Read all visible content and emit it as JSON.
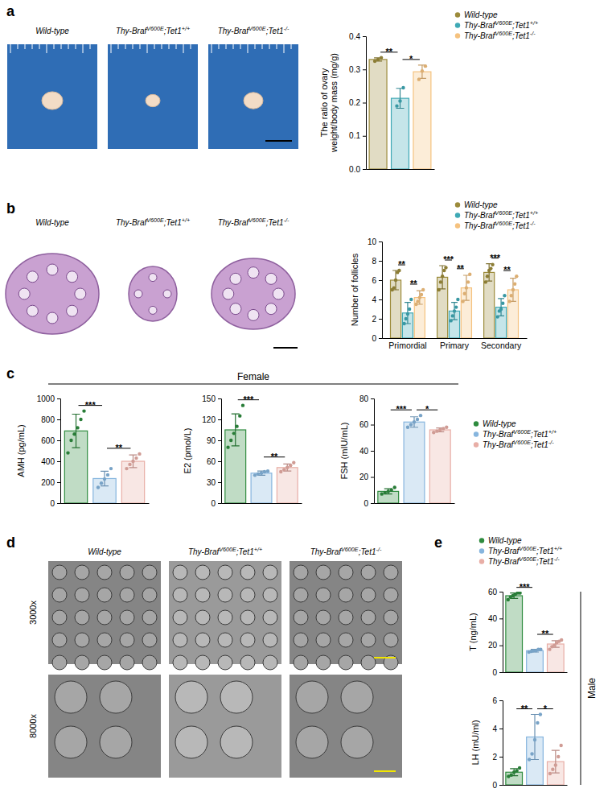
{
  "panels": [
    "a",
    "b",
    "c",
    "d",
    "e"
  ],
  "group_labels": [
    "Female",
    "Male"
  ],
  "images": [
    {
      "panel": "a",
      "labels": [
        "Wild-type",
        "Thy-BrafV600E;Tet1+/+",
        "Thy-BrafV600E;Tet1-/-"
      ]
    },
    {
      "panel": "b",
      "labels": [
        "Wild-type",
        "Thy-BrafV600E;Tet1+/+",
        "Thy-BrafV600E;Tet1-/-"
      ]
    },
    {
      "panel": "d",
      "labels": [
        "Wild-type",
        "Thy-BrafV600E;Tet1+/+",
        "Thy-BrafV600E;Tet1-/-"
      ],
      "rows": [
        "3000x",
        "8000x"
      ]
    }
  ],
  "chart_data": [
    {
      "type": "bar",
      "y_label": "The ratio of ovary weight/body mass (mg/g)",
      "categories": [
        "Wild-type",
        "Thy-BrafV600E;Tet1+/+",
        "Thy-BrafV600E;Tet1-/-"
      ],
      "values": [
        0.33,
        0.213,
        0.293
      ],
      "errors": [
        0.005,
        0.03,
        0.02
      ],
      "points": [
        [
          0.325,
          0.33,
          0.335
        ],
        [
          0.19,
          0.205,
          0.245
        ],
        [
          0.27,
          0.295,
          0.31
        ]
      ],
      "colors": [
        "#9c8b3b",
        "#3fa9b5",
        "#f5c27f"
      ],
      "ylim": [
        0,
        0.4
      ],
      "yticks": [
        {
          "value": 0,
          "label": "0.0"
        },
        {
          "value": 0.1,
          "label": "0.1"
        },
        {
          "value": 0.2,
          "label": "0.2"
        },
        {
          "value": 0.3,
          "label": "0.3"
        },
        {
          "value": 0.4,
          "label": "0.4"
        }
      ],
      "tick_labels": "y",
      "legend": "top-right",
      "annotations": [
        {
          "text": "**",
          "between": [
            0,
            1
          ]
        },
        {
          "text": "*",
          "between": [
            1,
            2
          ]
        }
      ]
    },
    {
      "type": "bar",
      "y_label": "Number of follicles",
      "categories": [
        "Primordial",
        "Primary",
        "Secondary"
      ],
      "series": [
        {
          "name": "Wild-type",
          "color": "#9c8b3b",
          "values": [
            6.0,
            6.3,
            6.8
          ],
          "errors": [
            1.0,
            1.2,
            0.9
          ],
          "points": [
            [
              5,
              5.2,
              6,
              6.8,
              7
            ],
            [
              5,
              5.8,
              6.4,
              7,
              7.3
            ],
            [
              5.8,
              6.4,
              7,
              7.2,
              7.6
            ]
          ]
        },
        {
          "name": "Thy-BrafV600E;Tet1+/+",
          "color": "#3fa9b5",
          "values": [
            2.6,
            2.8,
            3.2
          ],
          "errors": [
            1.1,
            0.9,
            0.9
          ],
          "points": [
            [
              1.5,
              2,
              2.5,
              3,
              4
            ],
            [
              1.8,
              2.3,
              2.8,
              3.2,
              4
            ],
            [
              2.2,
              2.8,
              3,
              3.6,
              4.4
            ]
          ]
        },
        {
          "name": "Thy-BrafV600E;Tet1-/-",
          "color": "#f5c27f",
          "values": [
            4.2,
            5.2,
            5.0
          ],
          "errors": [
            0.7,
            1.3,
            1.2
          ],
          "points": [
            [
              3.5,
              3.8,
              4.2,
              4.5,
              5
            ],
            [
              3.8,
              4.6,
              5.2,
              5.8,
              6.6
            ],
            [
              3.8,
              4.4,
              5,
              5.6,
              6.4
            ]
          ]
        }
      ],
      "ylim": [
        0,
        10
      ],
      "yticks": [
        0,
        2,
        4,
        6,
        8,
        10
      ],
      "legend": "top-right",
      "annotations": [
        {
          "text": "**",
          "category": 0,
          "between": [
            0,
            1
          ]
        },
        {
          "text": "**",
          "category": 0,
          "between": [
            1,
            2
          ]
        },
        {
          "text": "***",
          "category": 1,
          "between": [
            0,
            1
          ]
        },
        {
          "text": "**",
          "category": 1,
          "between": [
            1,
            2
          ]
        },
        {
          "text": "***",
          "category": 2,
          "between": [
            0,
            1
          ]
        },
        {
          "text": "**",
          "category": 2,
          "between": [
            1,
            2
          ]
        }
      ]
    },
    {
      "type": "bar",
      "y_label": "AMH (pg/mL)",
      "categories": [
        null,
        null,
        null
      ],
      "values": [
        690,
        235,
        400
      ],
      "errors": [
        160,
        70,
        60
      ],
      "points": [
        [
          480,
          600,
          660,
          720,
          800,
          880
        ],
        [
          150,
          190,
          230,
          270,
          330
        ],
        [
          330,
          370,
          400,
          430,
          470
        ]
      ],
      "colors": [
        "#2e8b3e",
        "#86b5de",
        "#e8aea6"
      ],
      "ylim": [
        0,
        1000
      ],
      "yticks": [
        0,
        200,
        400,
        600,
        800,
        1000
      ],
      "tick_labels": "y",
      "annotations": [
        {
          "text": "***",
          "between": [
            0,
            1
          ]
        },
        {
          "text": "**",
          "between": [
            1,
            2
          ]
        }
      ]
    },
    {
      "type": "bar",
      "y_label": "E2 (pmol/L)",
      "categories": [
        null,
        null,
        null
      ],
      "values": [
        105,
        43,
        51
      ],
      "errors": [
        23,
        3,
        5
      ],
      "points": [
        [
          80,
          90,
          100,
          110,
          125,
          140
        ],
        [
          40,
          42,
          43,
          45,
          46
        ],
        [
          45,
          48,
          51,
          54,
          58
        ]
      ],
      "colors": [
        "#2e8b3e",
        "#86b5de",
        "#e8aea6"
      ],
      "ylim": [
        0,
        150
      ],
      "yticks": [
        0,
        30,
        60,
        90,
        120,
        150
      ],
      "tick_labels": "y",
      "annotations": [
        {
          "text": "***",
          "between": [
            0,
            1
          ]
        },
        {
          "text": "**",
          "between": [
            1,
            2
          ]
        }
      ]
    },
    {
      "type": "bar",
      "y_label": "FSH (mIU/mL)",
      "categories": [
        "Wild-type",
        "Thy-BrafV600E;Tet1+/+",
        "Thy-BrafV600E;Tet1-/-"
      ],
      "values": [
        9,
        62,
        56
      ],
      "errors": [
        2,
        4,
        1.5
      ],
      "points": [
        [
          7,
          8,
          9,
          10,
          12
        ],
        [
          58,
          60,
          62,
          64,
          67
        ],
        [
          54,
          55,
          56,
          57,
          58
        ]
      ],
      "colors": [
        "#2e8b3e",
        "#86b5de",
        "#e8aea6"
      ],
      "ylim": [
        0,
        80
      ],
      "yticks": [
        0,
        20,
        40,
        60,
        80
      ],
      "tick_labels": "y",
      "legend": "right",
      "annotations": [
        {
          "text": "***",
          "between": [
            0,
            1
          ]
        },
        {
          "text": "*",
          "between": [
            1,
            2
          ]
        }
      ]
    },
    {
      "type": "bar",
      "y_label": "T (ng/mL)",
      "categories": [
        "Wild-type",
        "Thy-BrafV600E;Tet1+/+",
        "Thy-BrafV600E;Tet1-/-"
      ],
      "values": [
        57,
        16,
        21
      ],
      "errors": [
        2,
        1,
        2.5
      ],
      "points": [
        [
          54,
          56,
          57,
          58,
          59,
          59
        ],
        [
          15,
          15.5,
          16,
          16,
          17,
          17
        ],
        [
          17,
          19,
          20,
          22,
          23,
          24
        ]
      ],
      "colors": [
        "#2e8b3e",
        "#86b5de",
        "#e8aea6"
      ],
      "ylim": [
        0,
        60
      ],
      "yticks": [
        0,
        20,
        40,
        60
      ],
      "tick_labels": "y",
      "legend": "top",
      "annotations": [
        {
          "text": "***",
          "between": [
            0,
            1
          ]
        },
        {
          "text": "**",
          "between": [
            1,
            2
          ]
        }
      ]
    },
    {
      "type": "bar",
      "y_label": "LH (mU/ml)",
      "categories": [
        null,
        null,
        null
      ],
      "values": [
        0.9,
        3.4,
        1.65
      ],
      "errors": [
        0.25,
        1.6,
        0.8
      ],
      "points": [
        [
          0.6,
          0.7,
          0.9,
          1.0,
          1.2
        ],
        [
          1.8,
          2.2,
          3.2,
          4.4,
          5.0
        ],
        [
          0.8,
          1.1,
          1.4,
          2.0,
          2.8
        ]
      ],
      "colors": [
        "#2e8b3e",
        "#86b5de",
        "#e8aea6"
      ],
      "ylim": [
        0,
        6
      ],
      "yticks": [
        0,
        2,
        4,
        6
      ],
      "tick_labels": "y",
      "annotations": [
        {
          "text": "**",
          "between": [
            0,
            1
          ]
        },
        {
          "text": "*",
          "between": [
            1,
            2
          ]
        }
      ]
    }
  ]
}
